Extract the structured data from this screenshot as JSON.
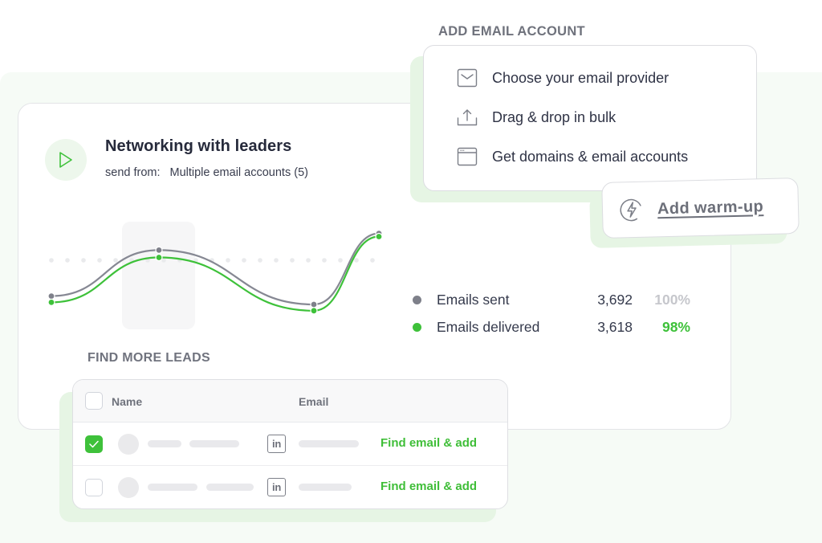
{
  "colors": {
    "accent_green": "#3ec13a",
    "sent_gray": "#7e808a",
    "shadow_green": "#e6f5e4",
    "panel_mint": "#f6fbf6"
  },
  "campaign": {
    "title": "Networking with leaders",
    "send_from_label": "send from:",
    "send_from_value": "Multiple email accounts (5)",
    "icon": "play-icon"
  },
  "stats": [
    {
      "label": "Emails sent",
      "value": "3,692",
      "percent": "100%",
      "color": "#7e808a",
      "percent_color": "#c6c7cc"
    },
    {
      "label": "Emails delivered",
      "value": "3,618",
      "percent": "98%",
      "color": "#3ec13a",
      "percent_color": "#3ec13a"
    }
  ],
  "chart_data": {
    "type": "line",
    "title": "",
    "x": [
      0,
      1,
      2,
      3
    ],
    "xlabel": "",
    "ylabel": "",
    "grid": "dotted horizontal reference line",
    "highlighted_point_index": 1,
    "series": [
      {
        "name": "Emails sent",
        "color": "#7e808a",
        "values": [
          28,
          72,
          20,
          88
        ]
      },
      {
        "name": "Emails delivered",
        "color": "#3ec13a",
        "values": [
          22,
          65,
          14,
          85
        ]
      }
    ]
  },
  "leads": {
    "heading": "FIND MORE LEADS",
    "columns": {
      "name": "Name",
      "email": "Email"
    },
    "rows": [
      {
        "checked": true,
        "action": "Find email & add",
        "linkedin": "in"
      },
      {
        "checked": false,
        "action": "Find email & add",
        "linkedin": "in"
      }
    ]
  },
  "add_email": {
    "heading": "ADD EMAIL ACCOUNT",
    "items": [
      {
        "label": "Choose your email provider",
        "icon": "envelope-icon"
      },
      {
        "label": "Drag & drop in bulk",
        "icon": "upload-icon"
      },
      {
        "label": "Get domains & email accounts",
        "icon": "browser-window-icon"
      }
    ]
  },
  "warmup": {
    "label": "Add warm-up",
    "icon": "lightning-icon"
  }
}
